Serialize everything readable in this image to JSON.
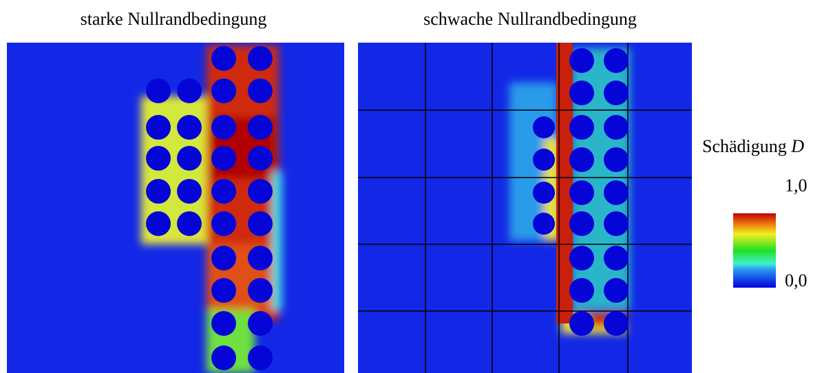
{
  "panels": [
    {
      "title": "starke Nullrandbedingung"
    },
    {
      "title": "schwache Nullrandbedingung"
    }
  ],
  "colorbar": {
    "title": "Schädigung",
    "variable": "D",
    "ticks": [
      {
        "value": 1,
        "label": "1,0"
      },
      {
        "value": 0,
        "label": "0,0"
      }
    ]
  }
}
